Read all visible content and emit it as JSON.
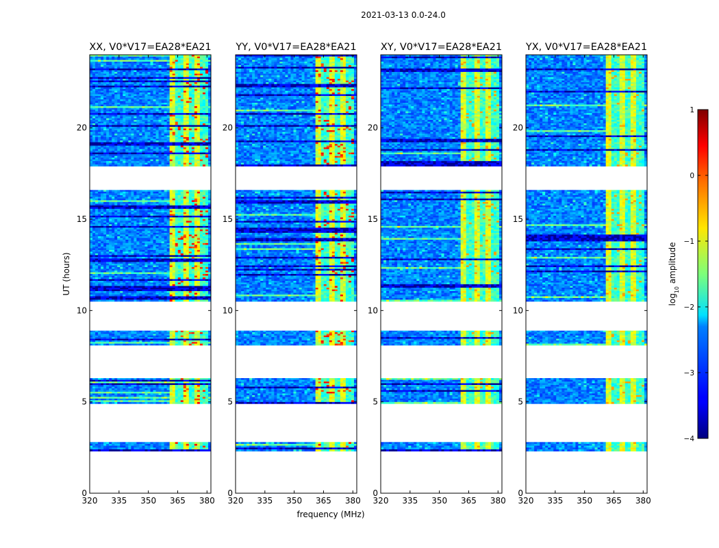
{
  "chart_data": {
    "type": "heatmap",
    "suptitle": "2021-03-13 0.0-24.0",
    "xlabel": "frequency (MHz)",
    "ylabel": "UT (hours)",
    "xlim": [
      320,
      382
    ],
    "ylim": [
      0,
      24
    ],
    "x_ticks": [
      320,
      335,
      350,
      365,
      380
    ],
    "y_ticks": [
      0,
      5,
      10,
      15,
      20
    ],
    "panels": [
      {
        "title": "XX, V0*V17=EA28*EA21",
        "polarization": "XX",
        "baseline": "V0*V17=EA28*EA21"
      },
      {
        "title": "YY, V0*V17=EA28*EA21",
        "polarization": "YY",
        "baseline": "V0*V17=EA28*EA21"
      },
      {
        "title": "XY, V0*V17=EA28*EA21",
        "polarization": "XY",
        "baseline": "V0*V17=EA28*EA21"
      },
      {
        "title": "YX, V0*V17=EA28*EA21",
        "polarization": "YX",
        "baseline": "V0*V17=EA28*EA21"
      }
    ],
    "data_blocks_ut_hours": [
      [
        2.3,
        2.8
      ],
      [
        4.9,
        6.3
      ],
      [
        8.1,
        8.9
      ],
      [
        10.5,
        16.6
      ],
      [
        17.9,
        24.0
      ]
    ],
    "rfi_band_mhz": [
      361,
      380
    ],
    "colorbar": {
      "label": "log10 amplitude",
      "label_main": "log",
      "label_sub": "10",
      "label_rest": " amplitude",
      "range": [
        -4,
        1
      ],
      "ticks": [
        -4,
        -3,
        -2,
        -1,
        0,
        1
      ],
      "tick_labels": [
        "−4",
        "−3",
        "−2",
        "−1",
        "0",
        "1"
      ],
      "colormap": "jet"
    }
  }
}
